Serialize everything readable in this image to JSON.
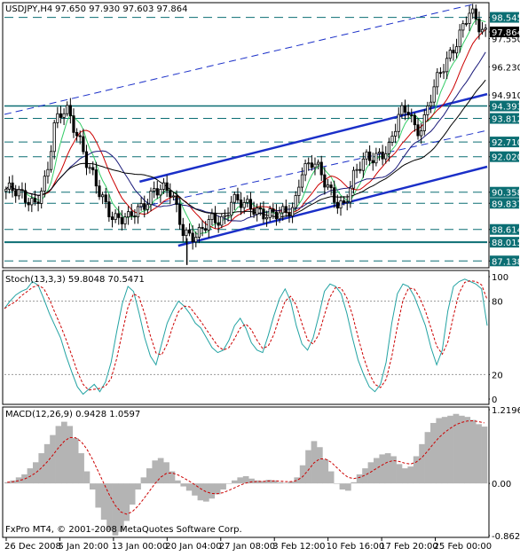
{
  "colors": {
    "background": "#ffffff",
    "ink": "#000000",
    "candle": "#000000",
    "channel": "#1a2fc8",
    "support_line": "#0b6e73",
    "ma_fast": "#33cc66",
    "ma_mid": "#cc0000",
    "ma_slow": "#1a1a7a",
    "ma_long": "#000000",
    "stoch_main": "#23a3a3",
    "stoch_signal": "#cc0000",
    "macd_hist": "#b4b4b4",
    "macd_signal": "#cc0000",
    "price_tag_bg": "#0b6e73",
    "current_tag_bg": "#000000"
  },
  "footer": {
    "credit": "FxPro MT4, © 2001-2008 MetaQuotes Software Corp."
  },
  "chart_data": [
    {
      "type": "candlestick",
      "header": "USDJPY,H4",
      "ohlc_label": "97.650 97.930 97.603 97.864",
      "ylim": [
        86.9,
        99.15
      ],
      "y_ticks": [
        "98.545",
        "97.864",
        "97.550",
        "96.230",
        "94.910",
        "94.393",
        "93.812",
        "92.710",
        "92.020",
        "90.358",
        "89.837",
        "88.614",
        "88.015",
        "87.138"
      ],
      "current_price": 97.864,
      "horizontal_levels": [
        98.545,
        94.393,
        93.812,
        92.71,
        92.02,
        90.358,
        89.837,
        88.614,
        87.138
      ],
      "support_level": 88.015,
      "channel": {
        "lower": {
          "from": {
            "t": 0.36,
            "p": 87.85
          },
          "to": {
            "t": 1.0,
            "p": 91.55
          }
        },
        "upper": {
          "from": {
            "t": 0.28,
            "p": 90.85
          },
          "to": {
            "t": 1.0,
            "p": 94.95
          }
        },
        "mid": {
          "from": {
            "t": 0.28,
            "p": 89.65
          },
          "to": {
            "t": 1.0,
            "p": 93.25
          }
        },
        "long": {
          "from": {
            "t": 0.0,
            "p": 94.0
          },
          "to": {
            "t": 0.97,
            "p": 99.15
          }
        }
      },
      "anchors": [
        {
          "t": 0.0,
          "p": 90.5
        },
        {
          "t": 0.03,
          "p": 90.15
        },
        {
          "t": 0.06,
          "p": 89.95
        },
        {
          "t": 0.085,
          "p": 91.0
        },
        {
          "t": 0.1,
          "p": 93.3
        },
        {
          "t": 0.125,
          "p": 94.45
        },
        {
          "t": 0.15,
          "p": 93.1
        },
        {
          "t": 0.17,
          "p": 91.5
        },
        {
          "t": 0.195,
          "p": 90.3
        },
        {
          "t": 0.225,
          "p": 89.25
        },
        {
          "t": 0.255,
          "p": 89.0
        },
        {
          "t": 0.28,
          "p": 89.6
        },
        {
          "t": 0.31,
          "p": 90.6
        },
        {
          "t": 0.345,
          "p": 90.2
        },
        {
          "t": 0.37,
          "p": 88.6
        },
        {
          "t": 0.4,
          "p": 88.3
        },
        {
          "t": 0.43,
          "p": 89.0
        },
        {
          "t": 0.455,
          "p": 89.2
        },
        {
          "t": 0.47,
          "p": 90.1
        },
        {
          "t": 0.5,
          "p": 89.6
        },
        {
          "t": 0.54,
          "p": 89.5
        },
        {
          "t": 0.575,
          "p": 89.2
        },
        {
          "t": 0.6,
          "p": 89.55
        },
        {
          "t": 0.615,
          "p": 91.5
        },
        {
          "t": 0.64,
          "p": 91.8
        },
        {
          "t": 0.665,
          "p": 90.7
        },
        {
          "t": 0.69,
          "p": 90.0
        },
        {
          "t": 0.705,
          "p": 89.85
        },
        {
          "t": 0.725,
          "p": 91.0
        },
        {
          "t": 0.75,
          "p": 91.9
        },
        {
          "t": 0.775,
          "p": 92.2
        },
        {
          "t": 0.8,
          "p": 92.4
        },
        {
          "t": 0.82,
          "p": 93.9
        },
        {
          "t": 0.84,
          "p": 94.3
        },
        {
          "t": 0.855,
          "p": 93.3
        },
        {
          "t": 0.87,
          "p": 93.6
        },
        {
          "t": 0.89,
          "p": 95.0
        },
        {
          "t": 0.91,
          "p": 96.1
        },
        {
          "t": 0.93,
          "p": 97.1
        },
        {
          "t": 0.95,
          "p": 98.0
        },
        {
          "t": 0.965,
          "p": 98.7
        },
        {
          "t": 0.98,
          "p": 98.3
        },
        {
          "t": 0.99,
          "p": 97.9
        },
        {
          "t": 1.0,
          "p": 97.86
        }
      ],
      "moving_averages": [
        "ma_fast",
        "ma_mid",
        "ma_slow",
        "ma_long"
      ]
    },
    {
      "type": "line",
      "header": "Stoch(13,3,3) 59.8048 70.5471",
      "ylim": [
        0,
        100
      ],
      "y_ticks": [
        "100",
        "80",
        "20",
        "0"
      ],
      "levels": [
        80,
        20
      ],
      "series": [
        {
          "key": "stoch_main",
          "values": [
            74,
            80,
            85,
            88,
            90,
            96,
            93,
            82,
            70,
            60,
            50,
            35,
            22,
            10,
            4,
            8,
            12,
            6,
            14,
            30,
            55,
            78,
            92,
            88,
            70,
            50,
            35,
            28,
            45,
            62,
            72,
            80,
            76,
            70,
            62,
            58,
            50,
            42,
            38,
            40,
            48,
            60,
            66,
            58,
            46,
            40,
            38,
            52,
            68,
            82,
            90,
            80,
            60,
            45,
            40,
            50,
            68,
            88,
            94,
            92,
            86,
            70,
            50,
            32,
            20,
            10,
            6,
            12,
            30,
            62,
            86,
            94,
            92,
            84,
            72,
            60,
            42,
            28,
            40,
            72,
            92,
            96,
            98,
            96,
            94,
            90,
            60
          ]
        }
      ]
    },
    {
      "type": "bar",
      "header": "MACD(12,26,9) 0.9428 1.0597",
      "ylim": [
        -0.8627,
        1.2196
      ],
      "y_ticks": [
        "1.2196",
        "0.00",
        "-0.8627"
      ],
      "values": [
        0.02,
        0.05,
        0.1,
        0.15,
        0.25,
        0.35,
        0.5,
        0.65,
        0.8,
        0.95,
        1.02,
        0.95,
        0.75,
        0.5,
        0.2,
        -0.1,
        -0.4,
        -0.6,
        -0.78,
        -0.86,
        -0.8,
        -0.62,
        -0.35,
        -0.1,
        0.1,
        0.25,
        0.38,
        0.42,
        0.35,
        0.2,
        0.05,
        -0.05,
        -0.12,
        -0.2,
        -0.28,
        -0.3,
        -0.25,
        -0.18,
        -0.1,
        0.0,
        0.05,
        0.1,
        0.12,
        0.08,
        0.05,
        0.04,
        0.06,
        0.05,
        0.02,
        0.01,
        0.03,
        0.1,
        0.3,
        0.55,
        0.7,
        0.6,
        0.4,
        0.2,
        0.0,
        -0.1,
        -0.12,
        0.02,
        0.15,
        0.25,
        0.35,
        0.42,
        0.48,
        0.5,
        0.45,
        0.32,
        0.25,
        0.28,
        0.45,
        0.65,
        0.85,
        1.0,
        1.08,
        1.1,
        1.12,
        1.15,
        1.12,
        1.1,
        1.05,
        0.98,
        0.94
      ]
    }
  ],
  "time_axis": {
    "labels": [
      "26 Dec 2008",
      "5 Jan 20:00",
      "13 Jan 00:00",
      "20 Jan 04:00",
      "27 Jan 08:00",
      "3 Feb 12:00",
      "10 Feb 16:00",
      "17 Feb 20:00",
      "25 Feb 00:00"
    ]
  }
}
